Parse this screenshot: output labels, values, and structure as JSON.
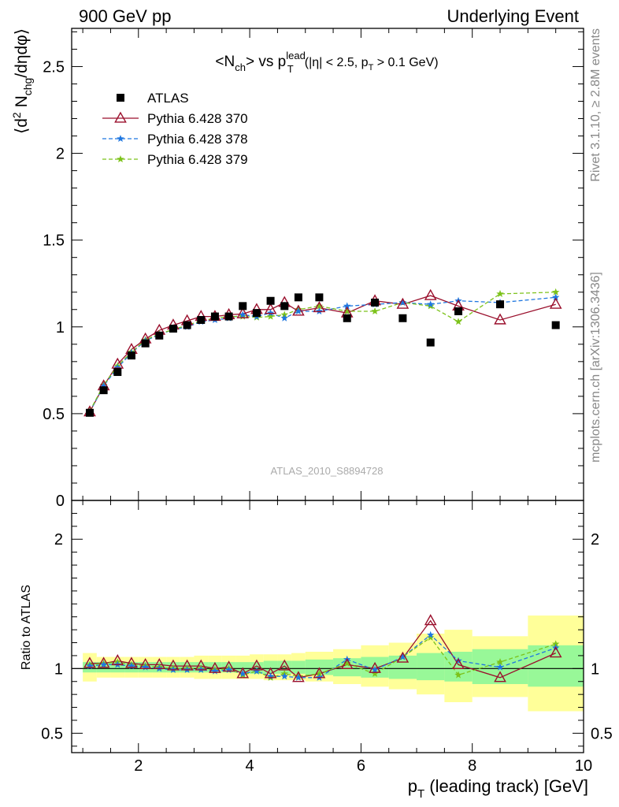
{
  "header": {
    "left": "900 GeV pp",
    "right": "Underlying Event"
  },
  "title": {
    "main": "<N",
    "main_sub": "ch",
    "vs": "> vs p",
    "vs_sub": "T",
    "vs_sup": "lead",
    "cuts_a": "(|η| < 2.5, p",
    "cuts_sub": "T",
    "cuts_b": " > 0.1 GeV)"
  },
  "side": {
    "rivet": "Rivet 3.1.10, ≥ 2.8M events",
    "mcplots": "mcplots.cern.ch [arXiv:1306.3436]"
  },
  "analysis_label": "ATLAS_2010_S8894728",
  "colors": {
    "atlas": "#000000",
    "p370": "#9a0f2c",
    "p378": "#1f77e0",
    "p379": "#7cc21a",
    "band_inner": "#98f898",
    "band_outer": "#ffff99"
  },
  "legend": [
    {
      "key": "atlas",
      "label": "ATLAS"
    },
    {
      "key": "p370",
      "label": "Pythia 6.428 370"
    },
    {
      "key": "p378",
      "label": "Pythia 6.428 378"
    },
    {
      "key": "p379",
      "label": "Pythia 6.428 379"
    }
  ],
  "chart_data": {
    "type": "scatter",
    "main": {
      "ylabel_parts": [
        "⟨d",
        "2",
        " N",
        "chg",
        "/dηdφ⟩"
      ],
      "ylim": [
        0,
        2.72
      ],
      "yticks": [
        "0",
        "0.5",
        "1",
        "1.5",
        "2",
        "2.5"
      ],
      "ytick_values": [
        0,
        0.5,
        1,
        1.5,
        2,
        2.5
      ]
    },
    "ratio": {
      "ylabel": "Ratio to ATLAS",
      "ylim": [
        0.35,
        2.3
      ],
      "yticks": [
        "0.5",
        "1",
        "2"
      ],
      "ytick_values": [
        0.5,
        1,
        2
      ]
    },
    "xlabel_parts": [
      "p",
      "T",
      " (leading track) [GeV]"
    ],
    "xlim": [
      0.8,
      10
    ],
    "xticks": [
      "2",
      "4",
      "6",
      "8",
      "10"
    ],
    "xtick_values": [
      2,
      4,
      6,
      8,
      10
    ],
    "x": [
      1.125,
      1.375,
      1.625,
      1.875,
      2.125,
      2.375,
      2.625,
      2.875,
      3.125,
      3.375,
      3.625,
      3.875,
      4.125,
      4.375,
      4.625,
      4.875,
      5.25,
      5.75,
      6.25,
      6.75,
      7.25,
      7.75,
      8.5,
      9.5
    ],
    "x_edges": [
      1.0,
      1.25,
      1.5,
      1.75,
      2.0,
      2.25,
      2.5,
      2.75,
      3.0,
      3.25,
      3.5,
      3.75,
      4.0,
      4.25,
      4.5,
      4.75,
      5.0,
      5.5,
      6.0,
      6.5,
      7.0,
      7.5,
      8.0,
      9.0,
      10.0
    ],
    "series": [
      {
        "name": "ATLAS",
        "key": "atlas",
        "marker": "square",
        "values": [
          0.505,
          0.635,
          0.74,
          0.835,
          0.905,
          0.95,
          0.99,
          1.01,
          1.04,
          1.06,
          1.06,
          1.12,
          1.08,
          1.15,
          1.12,
          1.17,
          1.17,
          1.05,
          1.14,
          1.05,
          0.91,
          1.09,
          1.13,
          1.01
        ]
      },
      {
        "name": "Pythia 6.428 370",
        "key": "p370",
        "marker": "triangle",
        "values": [
          0.51,
          0.66,
          0.785,
          0.87,
          0.93,
          0.98,
          1.01,
          1.035,
          1.06,
          1.06,
          1.07,
          1.075,
          1.1,
          1.1,
          1.14,
          1.09,
          1.11,
          1.08,
          1.15,
          1.13,
          1.18,
          1.12,
          1.04,
          1.13
        ]
      },
      {
        "name": "Pythia 6.428 378",
        "key": "p378",
        "marker": "star",
        "values": [
          0.51,
          0.66,
          0.765,
          0.85,
          0.92,
          0.955,
          0.985,
          1.0,
          1.03,
          1.04,
          1.05,
          1.07,
          1.06,
          1.08,
          1.05,
          1.09,
          1.09,
          1.12,
          1.13,
          1.14,
          1.13,
          1.15,
          1.14,
          1.17
        ]
      },
      {
        "name": "Pythia 6.428 379",
        "key": "p379",
        "marker": "star",
        "values": [
          0.515,
          0.665,
          0.775,
          0.855,
          0.925,
          0.96,
          0.985,
          1.01,
          1.035,
          1.05,
          1.06,
          1.06,
          1.055,
          1.06,
          1.07,
          1.1,
          1.12,
          1.09,
          1.09,
          1.14,
          1.12,
          1.03,
          1.19,
          1.2
        ]
      }
    ],
    "ratio_series": [
      {
        "key": "p370",
        "values": [
          1.04,
          1.04,
          1.06,
          1.04,
          1.03,
          1.03,
          1.02,
          1.02,
          1.02,
          1.0,
          1.01,
          0.96,
          1.02,
          0.96,
          1.02,
          0.93,
          0.96,
          1.03,
          1.0,
          1.08,
          1.37,
          1.03,
          0.93,
          1.12
        ]
      },
      {
        "key": "p378",
        "values": [
          1.02,
          1.03,
          1.03,
          1.02,
          1.01,
          1.0,
          0.99,
          0.99,
          0.99,
          0.98,
          0.99,
          0.96,
          0.98,
          0.94,
          0.94,
          0.93,
          0.93,
          1.07,
          0.99,
          1.09,
          1.26,
          1.06,
          1.01,
          1.16
        ]
      },
      {
        "key": "p379",
        "values": [
          1.03,
          1.04,
          1.05,
          1.03,
          1.02,
          1.01,
          1.0,
          1.0,
          1.0,
          0.99,
          1.0,
          0.95,
          0.98,
          0.93,
          0.96,
          0.94,
          0.96,
          1.04,
          0.96,
          1.09,
          1.24,
          0.95,
          1.05,
          1.19
        ]
      }
    ],
    "band_inner": [
      [
        0.97,
        1.05
      ],
      [
        0.97,
        1.05
      ],
      [
        0.97,
        1.05
      ],
      [
        0.97,
        1.05
      ],
      [
        0.97,
        1.05
      ],
      [
        0.97,
        1.05
      ],
      [
        0.97,
        1.05
      ],
      [
        0.97,
        1.05
      ],
      [
        0.97,
        1.05
      ],
      [
        0.97,
        1.05
      ],
      [
        0.97,
        1.05
      ],
      [
        0.97,
        1.05
      ],
      [
        0.96,
        1.05
      ],
      [
        0.96,
        1.06
      ],
      [
        0.96,
        1.06
      ],
      [
        0.96,
        1.06
      ],
      [
        0.95,
        1.07
      ],
      [
        0.94,
        1.08
      ],
      [
        0.93,
        1.09
      ],
      [
        0.92,
        1.1
      ],
      [
        0.91,
        1.12
      ],
      [
        0.9,
        1.13
      ],
      [
        0.88,
        1.15
      ],
      [
        0.86,
        1.18
      ]
    ],
    "band_outer": [
      [
        0.9,
        1.12
      ],
      [
        0.93,
        1.09
      ],
      [
        0.93,
        1.09
      ],
      [
        0.93,
        1.09
      ],
      [
        0.93,
        1.09
      ],
      [
        0.93,
        1.09
      ],
      [
        0.93,
        1.09
      ],
      [
        0.93,
        1.09
      ],
      [
        0.92,
        1.1
      ],
      [
        0.92,
        1.1
      ],
      [
        0.92,
        1.1
      ],
      [
        0.92,
        1.1
      ],
      [
        0.92,
        1.11
      ],
      [
        0.91,
        1.11
      ],
      [
        0.91,
        1.11
      ],
      [
        0.91,
        1.12
      ],
      [
        0.9,
        1.13
      ],
      [
        0.88,
        1.15
      ],
      [
        0.86,
        1.18
      ],
      [
        0.84,
        1.2
      ],
      [
        0.8,
        1.27
      ],
      [
        0.74,
        1.3
      ],
      [
        0.78,
        1.25
      ],
      [
        0.67,
        1.41
      ]
    ]
  }
}
